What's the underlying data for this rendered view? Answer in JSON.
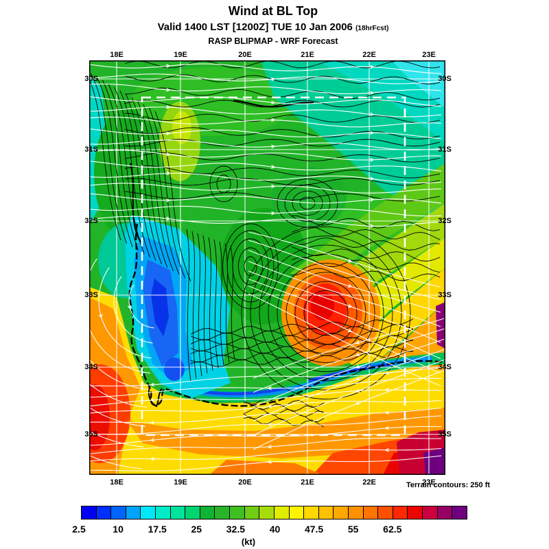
{
  "header": {
    "title": "Wind at BL Top",
    "valid_line": "Valid 1400 LST [1200Z] TUE 10 Jan 2006",
    "valid_suffix": "(18hrFcst)",
    "model_line": "RASP BLIPMAP - WRF Forecast"
  },
  "map": {
    "lon_ticks": [
      "18E",
      "19E",
      "20E",
      "21E",
      "22E",
      "23E"
    ],
    "lat_ticks": [
      "30S",
      "31S",
      "32S",
      "33S",
      "34S",
      "35S"
    ],
    "footnote": "Terrain contours: 250 ft"
  },
  "colorbar": {
    "tick_labels": [
      "2.5",
      "10",
      "17.5",
      "25",
      "32.5",
      "40",
      "47.5",
      "55",
      "62.5"
    ],
    "unit_label": "(kt)",
    "colors": [
      "#0000f4",
      "#0030ff",
      "#0064ff",
      "#00a4ff",
      "#00e8f8",
      "#00ecc8",
      "#00e49c",
      "#00d470",
      "#10b434",
      "#28b428",
      "#40c020",
      "#70cc14",
      "#a8dc08",
      "#e0ec00",
      "#fff400",
      "#ffd800",
      "#ffc000",
      "#ffa800",
      "#ff9000",
      "#ff7400",
      "#ff5000",
      "#ff2800",
      "#ec0400",
      "#cc0040",
      "#980064",
      "#700080"
    ]
  },
  "chart_data": {
    "type": "heatmap",
    "title": "Wind at BL Top",
    "subtitle": "Valid 1400 LST [1200Z] TUE 10 Jan 2006 (18hrFcst)",
    "source_line": "RASP BLIPMAP - WRF Forecast",
    "units": "kt",
    "x_ticks": [
      "18E",
      "19E",
      "20E",
      "21E",
      "22E",
      "23E"
    ],
    "y_ticks": [
      "30S",
      "31S",
      "32S",
      "33S",
      "34S",
      "35S"
    ],
    "colorbar_ticks_kt": [
      2.5,
      10,
      17.5,
      25,
      32.5,
      40,
      47.5,
      55,
      62.5
    ],
    "colorbar_step_kt": 2.5,
    "palette": [
      "#0000f4",
      "#0030ff",
      "#0064ff",
      "#00a4ff",
      "#00e8f8",
      "#00ecc8",
      "#00e49c",
      "#00d470",
      "#10b434",
      "#28b428",
      "#40c020",
      "#70cc14",
      "#a8dc08",
      "#e0ec00",
      "#fff400",
      "#ffd800",
      "#ffc000",
      "#ffa800",
      "#ff9000",
      "#ff7400",
      "#ff5000",
      "#ff2800",
      "#ec0400",
      "#cc0040",
      "#980064",
      "#700080"
    ],
    "terrain_contour_interval": "250 ft",
    "overlays": [
      "black terrain contours",
      "white wind streamlines with arrowheads",
      "white lat/lon grid",
      "white dashed nested-domain box",
      "black dashed coastline"
    ],
    "notable_regions_kt": [
      {
        "area": "north interior 30S-31.5S",
        "approx_kt": "17.5-25 (green)"
      },
      {
        "area": "northeast corner",
        "approx_kt": "12.5-17.5 (cyan)"
      },
      {
        "area": "upper-left patch near 19E 30.5S",
        "approx_kt": "30-32.5 (yellow-green)"
      },
      {
        "area": "lee of west-coast mountains 18.5E-19E 32.5S-34S",
        "approx_kt": "5-12.5 (blue)"
      },
      {
        "area": "west-coast offshore jet near 18E 33.5S-35S",
        "approx_kt": "45-57.5 (orange-red)"
      },
      {
        "area": "interior hotspot 21E-21.5E 33S-33.5S",
        "approx_kt": "45-55 (red core in orange)"
      },
      {
        "area": "south coastal strip 19.5E-22.5E near 34S",
        "approx_kt": "5-12.5 (blue band)"
      },
      {
        "area": "south offshore below 34.5S",
        "approx_kt": "35-50 (yellow-orange-red)"
      },
      {
        "area": "southeast corner patches",
        "approx_kt": "60-65 (dark red / purple)"
      }
    ]
  }
}
